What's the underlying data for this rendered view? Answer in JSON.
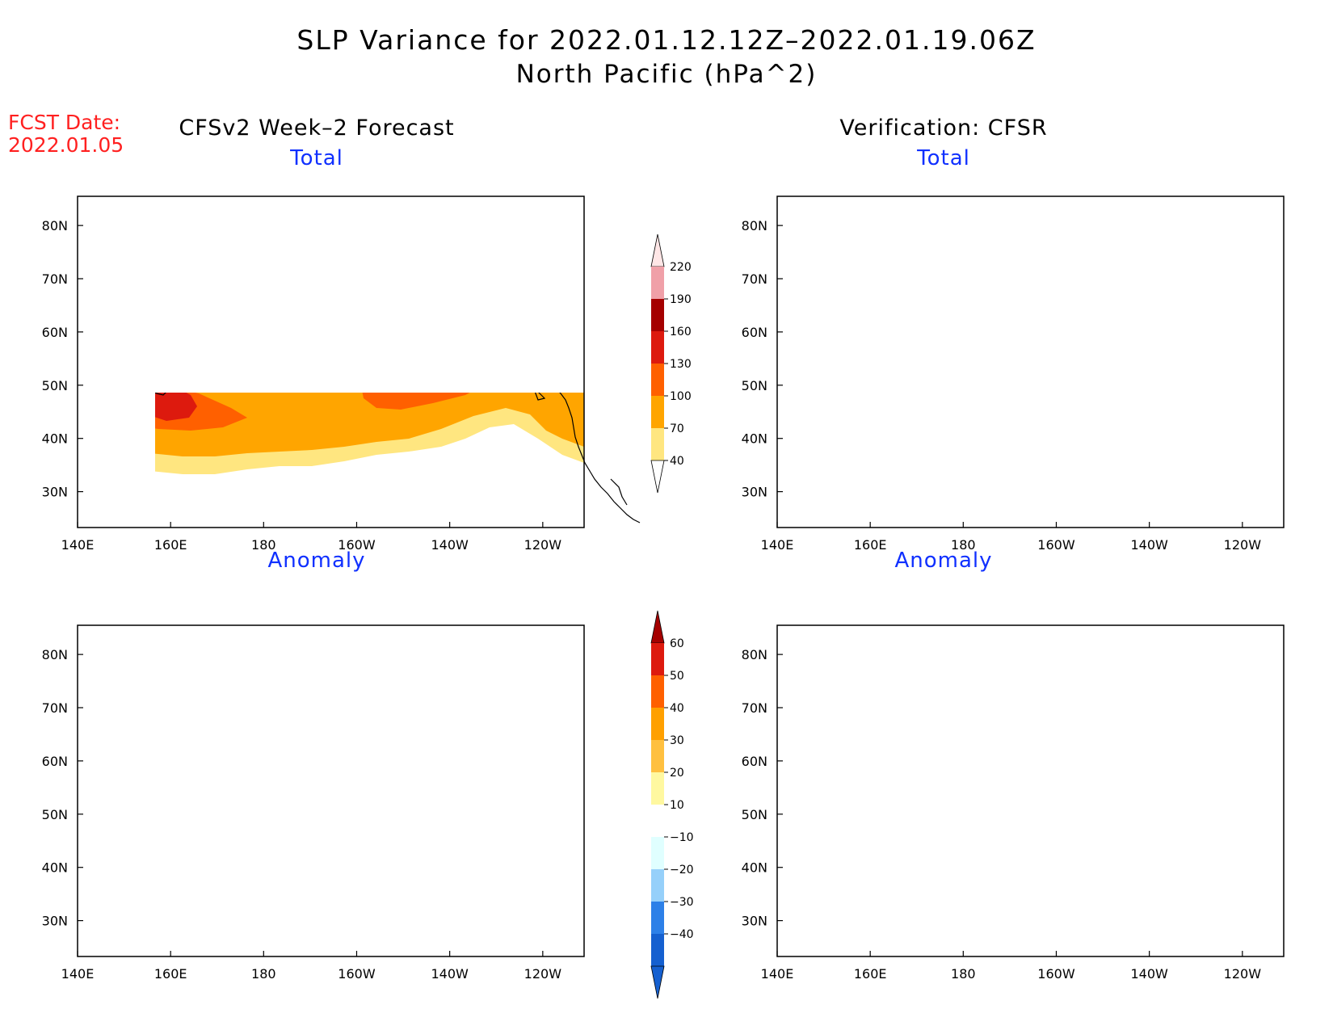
{
  "title": "SLP Variance for 2022.01.12.12Z–2022.01.19.06Z",
  "subtitle": "North Pacific (hPa^2)",
  "fcst_date": {
    "label": "FCST Date:",
    "value": "2022.01.05"
  },
  "columns": [
    {
      "title": "CFSv2 Week–2 Forecast"
    },
    {
      "title": "Verification: CFSR"
    }
  ],
  "panel_titles": {
    "total": "Total",
    "anomaly": "Anomaly"
  },
  "axes": {
    "lon_ticks": [
      "140E",
      "160E",
      "180",
      "160W",
      "140W",
      "120W"
    ],
    "lat_ticks": [
      "80N",
      "70N",
      "60N",
      "50N",
      "40N",
      "30N"
    ]
  },
  "colors": {
    "total": [
      "#ffe680",
      "#ffa500",
      "#ff6000",
      "#dd1a0e",
      "#a50000",
      "#f0a0a8",
      "#ffe6e6"
    ],
    "anomaly_neg": [
      "#1560d0",
      "#2d80e8",
      "#96d0fa",
      "#e0ffff"
    ],
    "anomaly_pos": [
      "#fff8a0",
      "#ffc040",
      "#ffa000",
      "#ff6000",
      "#dd1a0e",
      "#a50000"
    ]
  },
  "colorbars": {
    "total": {
      "labels": [
        "220",
        "190",
        "160",
        "130",
        "100",
        "70",
        "40"
      ]
    },
    "anomaly": {
      "labels": [
        "60",
        "50",
        "40",
        "30",
        "20",
        "10",
        "−10",
        "−20",
        "−30",
        "−40"
      ]
    }
  }
}
